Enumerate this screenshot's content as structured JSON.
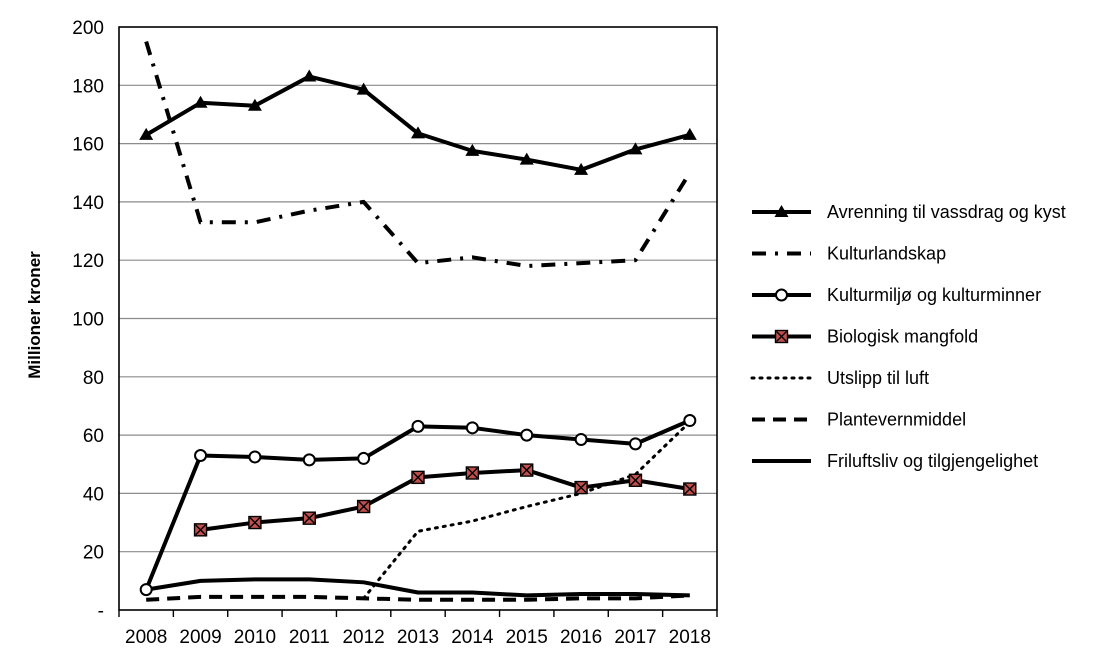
{
  "chart_data": {
    "type": "line",
    "title": "",
    "xlabel": "",
    "ylabel": "Millioner kroner",
    "ylim": [
      0,
      200
    ],
    "x_ticks": [
      "2008",
      "2009",
      "2010",
      "2011",
      "2012",
      "2013",
      "2014",
      "2015",
      "2016",
      "2017",
      "2018"
    ],
    "y_ticks": [
      "-",
      "20",
      "40",
      "60",
      "80",
      "100",
      "120",
      "140",
      "160",
      "180",
      "200"
    ],
    "grid": "horizontal",
    "legend_position": "right",
    "series": [
      {
        "name": "Avrenning til vassdrag og kyst",
        "style": "solid",
        "marker": "triangle",
        "color": "#000000",
        "values": [
          163,
          174,
          173,
          183,
          178.5,
          163.5,
          157.5,
          154.5,
          151,
          158,
          163
        ]
      },
      {
        "name": "Kulturlandskap",
        "style": "dash-dot",
        "marker": "none",
        "color": "#000000",
        "values": [
          195,
          133,
          133,
          137,
          140,
          119,
          121,
          118,
          119,
          120,
          150
        ]
      },
      {
        "name": "Kulturmiljø og kulturminner",
        "style": "solid",
        "marker": "circle",
        "color": "#000000",
        "values": [
          7,
          53,
          52.5,
          51.5,
          52,
          63,
          62.5,
          60,
          58.5,
          57,
          65
        ]
      },
      {
        "name": "Biologisk mangfold",
        "style": "solid",
        "marker": "square-x",
        "color": "#000000",
        "marker_fill": "#c0504d",
        "values": [
          null,
          27.5,
          30,
          31.5,
          35.5,
          45.5,
          47,
          48,
          42,
          44.5,
          41.5
        ]
      },
      {
        "name": "Utslipp til luft",
        "style": "dotted",
        "marker": "none",
        "color": "#000000",
        "values": [
          null,
          null,
          null,
          null,
          4,
          27,
          30.5,
          35.5,
          40,
          46.5,
          64.5
        ]
      },
      {
        "name": "Plantevernmiddel",
        "style": "dashed",
        "marker": "none",
        "color": "#000000",
        "values": [
          3.5,
          4.5,
          4.5,
          4.5,
          4,
          3.5,
          3.5,
          3.5,
          4,
          4,
          5
        ]
      },
      {
        "name": "Friluftsliv og tilgjengelighet",
        "style": "solid",
        "marker": "none",
        "color": "#000000",
        "values": [
          7,
          10,
          10.5,
          10.5,
          9.5,
          6,
          6,
          5,
          5.5,
          5.5,
          5
        ]
      }
    ]
  }
}
